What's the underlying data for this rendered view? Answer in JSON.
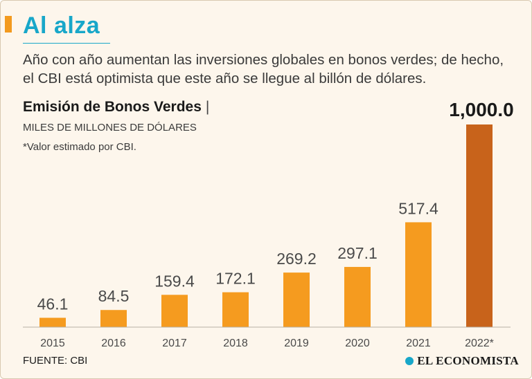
{
  "header": {
    "headline": "Al alza",
    "subtitle": "Año con año aumentan las inversiones globales en bonos verdes; de hecho, el CBI está optimista que este año se llegue al billón de dólares.",
    "chart_title": "Emisión de Bonos Verdes",
    "separator": "|",
    "unit": "MILES DE MILLONES DE DÓLARES",
    "note": "*Valor estimado por CBI."
  },
  "footer": {
    "source": "FUENTE: CBI",
    "brand": "EL ECONOMISTA"
  },
  "colors": {
    "bar": "#f59b1f",
    "bar_highlight": "#c8631b",
    "accent": "#18a7c9",
    "label": "#4a4a4a"
  },
  "chart_data": {
    "type": "bar",
    "title": "Emisión de Bonos Verdes",
    "ylabel": "MILES DE MILLONES DE DÓLARES",
    "xlabel": "",
    "categories": [
      "2015",
      "2016",
      "2017",
      "2018",
      "2019",
      "2020",
      "2021",
      "2022*"
    ],
    "values": [
      46.1,
      84.5,
      159.4,
      172.1,
      269.2,
      297.1,
      517.4,
      1000.0
    ],
    "value_labels": [
      "46.1",
      "84.5",
      "159.4",
      "172.1",
      "269.2",
      "297.1",
      "517.4",
      "1,000.0"
    ],
    "highlight_index": 7,
    "ylim": [
      0,
      1000
    ],
    "grid": false
  }
}
